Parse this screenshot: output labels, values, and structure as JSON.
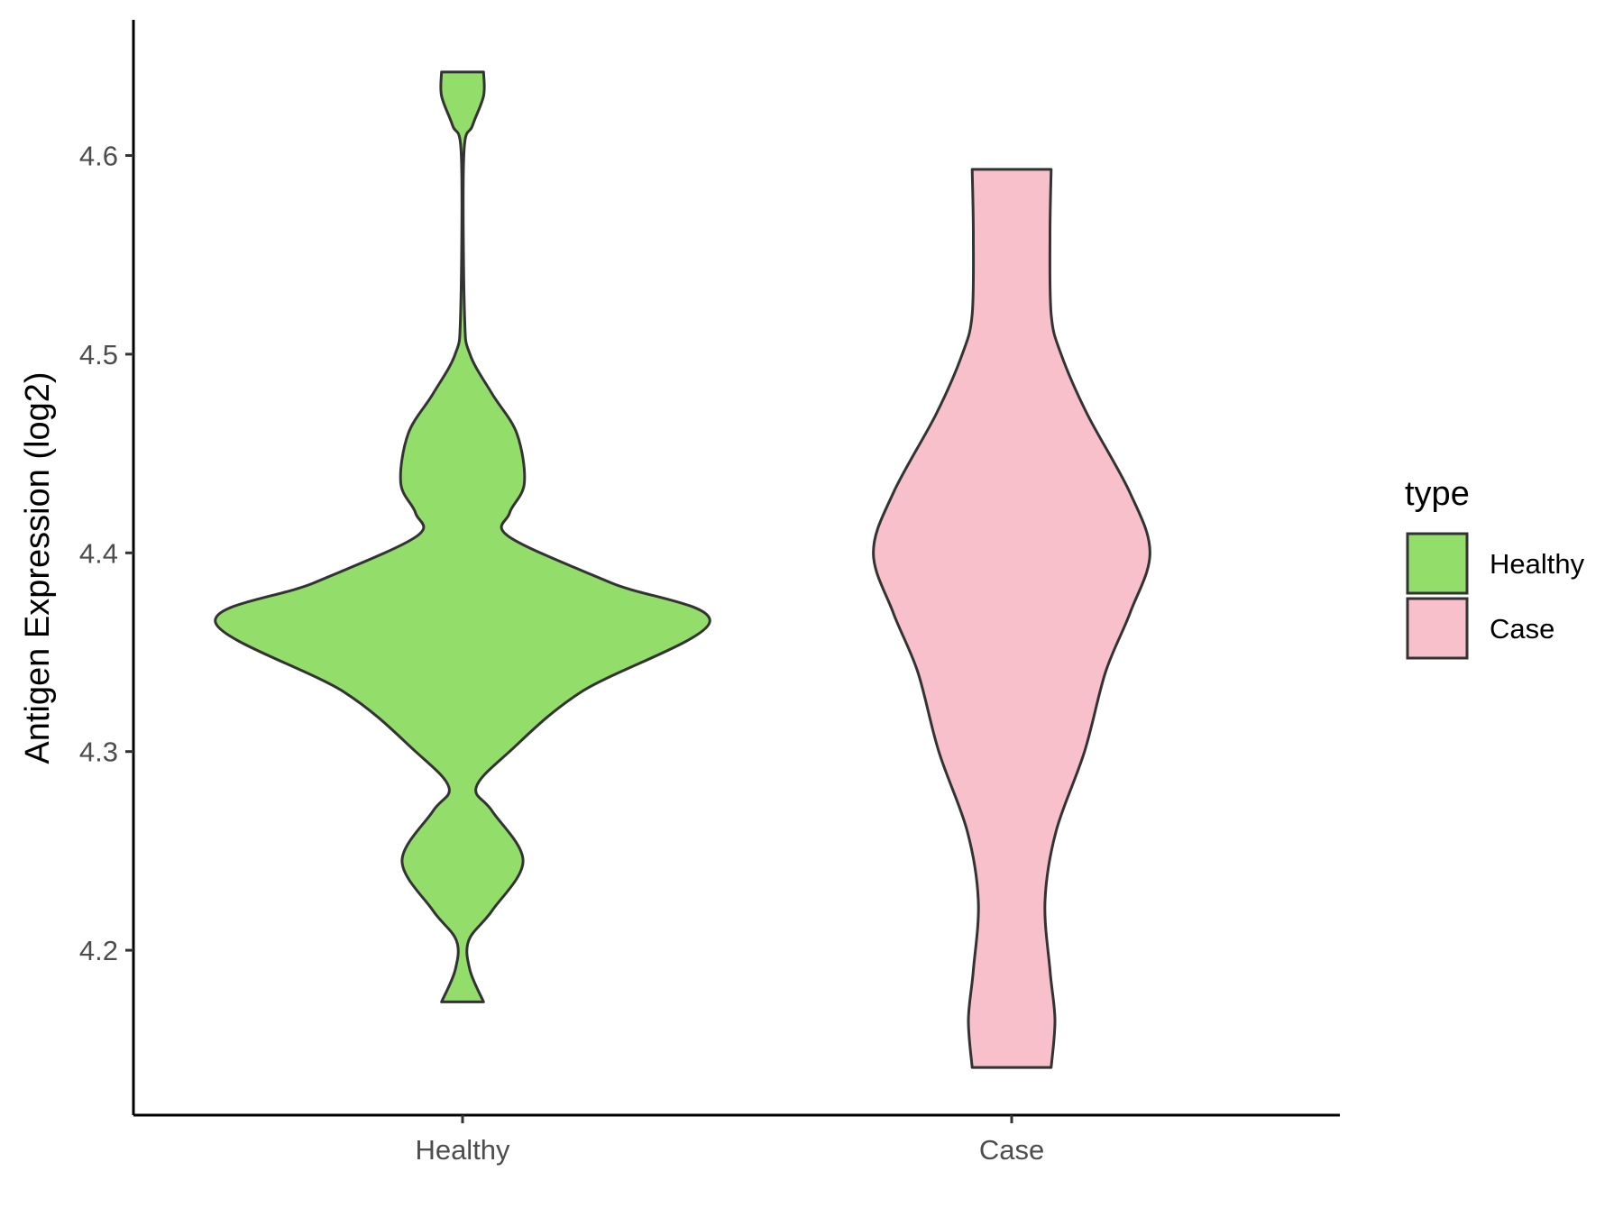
{
  "chart_data": {
    "type": "violin",
    "title": "",
    "xlabel": "",
    "ylabel": "Antigen Expression (log2)",
    "categories": [
      "Healthy",
      "Case"
    ],
    "ylim": [
      4.12,
      4.67
    ],
    "yticks": [
      4.2,
      4.3,
      4.4,
      4.5,
      4.6
    ],
    "grid": false,
    "legend": {
      "title": "type",
      "position": "right",
      "entries": [
        {
          "label": "Healthy",
          "color": "#93DD6B"
        },
        {
          "label": "Case",
          "color": "#F7C0CB"
        }
      ]
    },
    "series": [
      {
        "name": "Healthy",
        "color": "#93DD6B",
        "y_min": 4.174,
        "y_max": 4.642,
        "density_profile": [
          [
            4.174,
            0.085
          ],
          [
            4.19,
            0.03
          ],
          [
            4.205,
            0.025
          ],
          [
            4.22,
            0.12
          ],
          [
            4.245,
            0.245
          ],
          [
            4.27,
            0.12
          ],
          [
            4.282,
            0.055
          ],
          [
            4.3,
            0.19
          ],
          [
            4.33,
            0.48
          ],
          [
            4.365,
            1.0
          ],
          [
            4.385,
            0.6
          ],
          [
            4.408,
            0.19
          ],
          [
            4.42,
            0.19
          ],
          [
            4.435,
            0.25
          ],
          [
            4.46,
            0.22
          ],
          [
            4.48,
            0.12
          ],
          [
            4.5,
            0.03
          ],
          [
            4.52,
            0.008
          ],
          [
            4.6,
            0.005
          ],
          [
            4.615,
            0.04
          ],
          [
            4.63,
            0.085
          ],
          [
            4.642,
            0.085
          ]
        ]
      },
      {
        "name": "Case",
        "color": "#F7C0CB",
        "y_min": 4.141,
        "y_max": 4.593,
        "density_profile": [
          [
            4.141,
            0.16
          ],
          [
            4.165,
            0.175
          ],
          [
            4.19,
            0.155
          ],
          [
            4.225,
            0.135
          ],
          [
            4.26,
            0.18
          ],
          [
            4.3,
            0.295
          ],
          [
            4.34,
            0.38
          ],
          [
            4.37,
            0.48
          ],
          [
            4.4,
            0.56
          ],
          [
            4.43,
            0.48
          ],
          [
            4.47,
            0.305
          ],
          [
            4.5,
            0.2
          ],
          [
            4.52,
            0.16
          ],
          [
            4.56,
            0.155
          ],
          [
            4.593,
            0.16
          ]
        ]
      }
    ]
  }
}
